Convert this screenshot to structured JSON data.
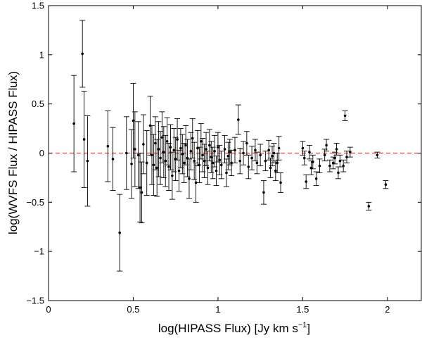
{
  "chart_data": {
    "type": "scatter",
    "title": "",
    "xlabel": "log(HIPASS Flux) [Jy km s",
    "xlabel_superscript": "−1",
    "xlabel_suffix": "]",
    "ylabel": "log(WVFS Flux / HIPASS Flux)",
    "xlim": [
      0,
      2.2
    ],
    "ylim": [
      -1.5,
      1.5
    ],
    "xticks": [
      0,
      0.5,
      1,
      1.5,
      2
    ],
    "xtick_labels": [
      "0",
      "0.5",
      "1",
      "1.5",
      "2"
    ],
    "yticks": [
      -1.5,
      -1,
      -0.5,
      0,
      0.5,
      1,
      1.5
    ],
    "ytick_labels": [
      "−1.5",
      "−1",
      "−0.5",
      "0",
      "0.5",
      "1",
      "1.5"
    ],
    "grid": false,
    "legend": "none",
    "reference_line": {
      "y": 0,
      "style": "dashed",
      "color": "#e23b3b"
    },
    "marker_color": "#000000",
    "errorbar_color": "#000000",
    "points": [
      {
        "x": 0.15,
        "y": 0.3,
        "err": 0.49
      },
      {
        "x": 0.2,
        "y": 1.01,
        "err": 0.34
      },
      {
        "x": 0.21,
        "y": 0.14,
        "err": 0.49
      },
      {
        "x": 0.23,
        "y": -0.08,
        "err": 0.46
      },
      {
        "x": 0.35,
        "y": 0.07,
        "err": 0.36
      },
      {
        "x": 0.38,
        "y": -0.06,
        "err": 0.32
      },
      {
        "x": 0.42,
        "y": -0.81,
        "err": 0.39
      },
      {
        "x": 0.46,
        "y": 0.0,
        "err": 0.37
      },
      {
        "x": 0.49,
        "y": -0.11,
        "err": 0.35
      },
      {
        "x": 0.5,
        "y": 0.33,
        "err": 0.38
      },
      {
        "x": 0.51,
        "y": 0.04,
        "err": 0.38
      },
      {
        "x": 0.53,
        "y": -0.02,
        "err": 0.34
      },
      {
        "x": 0.54,
        "y": -0.35,
        "err": 0.35
      },
      {
        "x": 0.55,
        "y": -0.4,
        "err": 0.31
      },
      {
        "x": 0.56,
        "y": 0.09,
        "err": 0.3
      },
      {
        "x": 0.58,
        "y": -0.1,
        "err": 0.33
      },
      {
        "x": 0.6,
        "y": 0.28,
        "err": 0.3
      },
      {
        "x": 0.61,
        "y": -0.02,
        "err": 0.3
      },
      {
        "x": 0.62,
        "y": -0.12,
        "err": 0.31
      },
      {
        "x": 0.63,
        "y": 0.1,
        "err": 0.27
      },
      {
        "x": 0.64,
        "y": -0.15,
        "err": 0.29
      },
      {
        "x": 0.65,
        "y": 0.04,
        "err": 0.28
      },
      {
        "x": 0.66,
        "y": -0.05,
        "err": 0.27
      },
      {
        "x": 0.67,
        "y": 0.16,
        "err": 0.26
      },
      {
        "x": 0.68,
        "y": 0.01,
        "err": 0.26
      },
      {
        "x": 0.69,
        "y": -0.08,
        "err": 0.26
      },
      {
        "x": 0.7,
        "y": 0.12,
        "err": 0.24
      },
      {
        "x": 0.71,
        "y": -0.14,
        "err": 0.24
      },
      {
        "x": 0.72,
        "y": 0.06,
        "err": 0.23
      },
      {
        "x": 0.73,
        "y": -0.23,
        "err": 0.24
      },
      {
        "x": 0.74,
        "y": 0.03,
        "err": 0.22
      },
      {
        "x": 0.75,
        "y": -0.06,
        "err": 0.22
      },
      {
        "x": 0.76,
        "y": 0.14,
        "err": 0.21
      },
      {
        "x": 0.77,
        "y": -0.18,
        "err": 0.21
      },
      {
        "x": 0.78,
        "y": 0.05,
        "err": 0.2
      },
      {
        "x": 0.79,
        "y": -0.01,
        "err": 0.2
      },
      {
        "x": 0.8,
        "y": -0.1,
        "err": 0.2
      },
      {
        "x": 0.81,
        "y": 0.08,
        "err": 0.2
      },
      {
        "x": 0.82,
        "y": -0.05,
        "err": 0.19
      },
      {
        "x": 0.83,
        "y": -0.26,
        "err": 0.2
      },
      {
        "x": 0.84,
        "y": 0.02,
        "err": 0.19
      },
      {
        "x": 0.85,
        "y": 0.15,
        "err": 0.2
      },
      {
        "x": 0.86,
        "y": -0.08,
        "err": 0.19
      },
      {
        "x": 0.87,
        "y": -0.3,
        "err": 0.2
      },
      {
        "x": 0.88,
        "y": 0.05,
        "err": 0.18
      },
      {
        "x": 0.89,
        "y": -0.12,
        "err": 0.18
      },
      {
        "x": 0.9,
        "y": 0.12,
        "err": 0.18
      },
      {
        "x": 0.91,
        "y": -0.02,
        "err": 0.17
      },
      {
        "x": 0.92,
        "y": -0.08,
        "err": 0.17
      },
      {
        "x": 0.93,
        "y": 0.04,
        "err": 0.17
      },
      {
        "x": 0.94,
        "y": -0.15,
        "err": 0.17
      },
      {
        "x": 0.95,
        "y": 0.08,
        "err": 0.16
      },
      {
        "x": 0.96,
        "y": -0.04,
        "err": 0.16
      },
      {
        "x": 0.97,
        "y": -0.1,
        "err": 0.16
      },
      {
        "x": 0.98,
        "y": 0.02,
        "err": 0.16
      },
      {
        "x": 0.99,
        "y": -0.18,
        "err": 0.15
      },
      {
        "x": 1.0,
        "y": 0.06,
        "err": 0.15
      },
      {
        "x": 1.01,
        "y": -0.07,
        "err": 0.15
      },
      {
        "x": 1.02,
        "y": -0.12,
        "err": 0.14
      },
      {
        "x": 1.04,
        "y": 0.04,
        "err": 0.14
      },
      {
        "x": 1.05,
        "y": -0.2,
        "err": 0.14
      },
      {
        "x": 1.06,
        "y": -0.03,
        "err": 0.14
      },
      {
        "x": 1.07,
        "y": 0.01,
        "err": 0.13
      },
      {
        "x": 1.08,
        "y": -0.1,
        "err": 0.13
      },
      {
        "x": 1.1,
        "y": 0.03,
        "err": 0.13
      },
      {
        "x": 1.12,
        "y": 0.34,
        "err": 0.15
      },
      {
        "x": 1.13,
        "y": -0.08,
        "err": 0.13
      },
      {
        "x": 1.15,
        "y": 0.0,
        "err": 0.12
      },
      {
        "x": 1.17,
        "y": 0.1,
        "err": 0.12
      },
      {
        "x": 1.18,
        "y": -0.14,
        "err": 0.12
      },
      {
        "x": 1.2,
        "y": -0.05,
        "err": 0.12
      },
      {
        "x": 1.22,
        "y": 0.03,
        "err": 0.11
      },
      {
        "x": 1.23,
        "y": -0.1,
        "err": 0.11
      },
      {
        "x": 1.25,
        "y": -0.02,
        "err": 0.11
      },
      {
        "x": 1.27,
        "y": -0.4,
        "err": 0.12
      },
      {
        "x": 1.28,
        "y": -0.08,
        "err": 0.1
      },
      {
        "x": 1.3,
        "y": 0.03,
        "err": 0.1
      },
      {
        "x": 1.31,
        "y": -0.15,
        "err": 0.1
      },
      {
        "x": 1.32,
        "y": -0.03,
        "err": 0.1
      },
      {
        "x": 1.33,
        "y": 0.0,
        "err": 0.1
      },
      {
        "x": 1.34,
        "y": -0.18,
        "err": 0.1
      },
      {
        "x": 1.35,
        "y": -0.1,
        "err": 0.1
      },
      {
        "x": 1.36,
        "y": 0.05,
        "err": 0.12
      },
      {
        "x": 1.37,
        "y": -0.3,
        "err": 0.1
      },
      {
        "x": 1.5,
        "y": 0.05,
        "err": 0.07
      },
      {
        "x": 1.51,
        "y": -0.05,
        "err": 0.07
      },
      {
        "x": 1.52,
        "y": -0.29,
        "err": 0.07
      },
      {
        "x": 1.54,
        "y": 0.01,
        "err": 0.07
      },
      {
        "x": 1.55,
        "y": -0.15,
        "err": 0.07
      },
      {
        "x": 1.56,
        "y": -0.09,
        "err": 0.07
      },
      {
        "x": 1.58,
        "y": -0.26,
        "err": 0.07
      },
      {
        "x": 1.6,
        "y": -0.13,
        "err": 0.07
      },
      {
        "x": 1.63,
        "y": -0.02,
        "err": 0.06
      },
      {
        "x": 1.64,
        "y": 0.08,
        "err": 0.06
      },
      {
        "x": 1.66,
        "y": -0.13,
        "err": 0.06
      },
      {
        "x": 1.68,
        "y": -0.1,
        "err": 0.06
      },
      {
        "x": 1.69,
        "y": -0.05,
        "err": 0.06
      },
      {
        "x": 1.7,
        "y": 0.04,
        "err": 0.06
      },
      {
        "x": 1.71,
        "y": -0.2,
        "err": 0.06
      },
      {
        "x": 1.72,
        "y": -0.08,
        "err": 0.06
      },
      {
        "x": 1.74,
        "y": -0.13,
        "err": 0.06
      },
      {
        "x": 1.75,
        "y": 0.38,
        "err": 0.05
      },
      {
        "x": 1.76,
        "y": -0.04,
        "err": 0.06
      },
      {
        "x": 1.78,
        "y": 0.01,
        "err": 0.05
      },
      {
        "x": 1.89,
        "y": -0.54,
        "err": 0.04
      },
      {
        "x": 1.94,
        "y": -0.02,
        "err": 0.03
      },
      {
        "x": 1.99,
        "y": -0.32,
        "err": 0.04
      }
    ]
  }
}
